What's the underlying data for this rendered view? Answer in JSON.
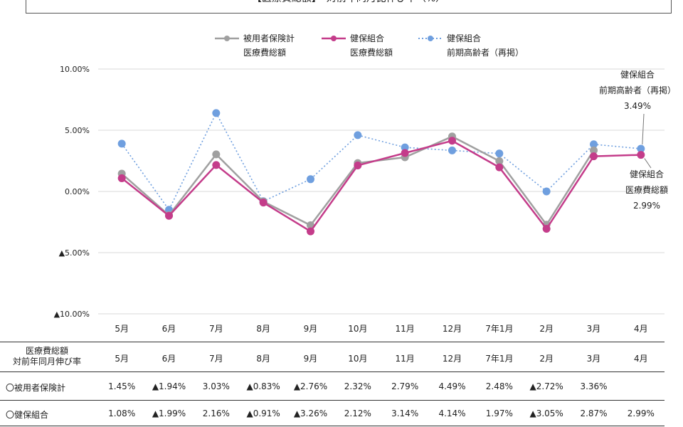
{
  "title": "【医療費総額】　対前年同月比伸び率（%）",
  "chart_data": {
    "type": "line",
    "categories": [
      "5月",
      "6月",
      "7月",
      "8月",
      "9月",
      "10月",
      "11月",
      "12月",
      "7年1月",
      "2月",
      "3月",
      "4月"
    ],
    "x_tick_labels": [
      "5月",
      "6月",
      "7月",
      "8月",
      "9月",
      "10月",
      "11月",
      "12月",
      "7年1月",
      "2月",
      "3月",
      "4月"
    ],
    "y_tick_labels": [
      "10.00%",
      "5.00%",
      "0.00%",
      "▲5.00%",
      "▲10.00%"
    ],
    "ylim": [
      -10,
      10
    ],
    "grid": true,
    "legend_position": "top-center",
    "series": [
      {
        "name_line1": "被用者保険計",
        "name_line2": "医療費総額",
        "color": "#a0a0a0",
        "style": "solid",
        "values": [
          1.45,
          -1.94,
          3.03,
          -0.83,
          -2.76,
          2.32,
          2.79,
          4.49,
          2.48,
          -2.72,
          3.36,
          null
        ]
      },
      {
        "name_line1": "健保組合",
        "name_line2": "医療費総額",
        "color": "#c43c8a",
        "style": "solid",
        "values": [
          1.08,
          -1.99,
          2.16,
          -0.91,
          -3.26,
          2.12,
          3.14,
          4.14,
          1.97,
          -3.05,
          2.87,
          2.99
        ]
      },
      {
        "name_line1": "健保組合",
        "name_line2": "前期高齢者（再掲）",
        "color": "#6f9fdf",
        "style": "dotted",
        "values": [
          3.9,
          -1.5,
          6.4,
          -0.8,
          1.0,
          4.6,
          3.6,
          3.35,
          3.1,
          0.0,
          3.85,
          3.49
        ]
      }
    ],
    "annotations": [
      {
        "lines": [
          "健保組合",
          "前期高齢者（再掲）",
          "3.49%"
        ],
        "series": 2
      },
      {
        "lines": [
          "健保組合",
          "医療費総額",
          "2.99%"
        ],
        "series": 1
      }
    ]
  },
  "table": {
    "header_line1": "医療費総額",
    "header_line2": "対前年同月伸び率",
    "columns": [
      "5月",
      "6月",
      "7月",
      "8月",
      "9月",
      "10月",
      "11月",
      "12月",
      "7年1月",
      "2月",
      "3月",
      "4月"
    ],
    "rows": [
      {
        "label": "〇被用者保険計",
        "cells": [
          "1.45%",
          "▲1.94%",
          "3.03%",
          "▲0.83%",
          "▲2.76%",
          "2.32%",
          "2.79%",
          "4.49%",
          "2.48%",
          "▲2.72%",
          "3.36%",
          ""
        ]
      },
      {
        "label": "〇健保組合",
        "cells": [
          "1.08%",
          "▲1.99%",
          "2.16%",
          "▲0.91%",
          "▲3.26%",
          "2.12%",
          "3.14%",
          "4.14%",
          "1.97%",
          "▲3.05%",
          "2.87%",
          "2.99%"
        ]
      }
    ]
  }
}
